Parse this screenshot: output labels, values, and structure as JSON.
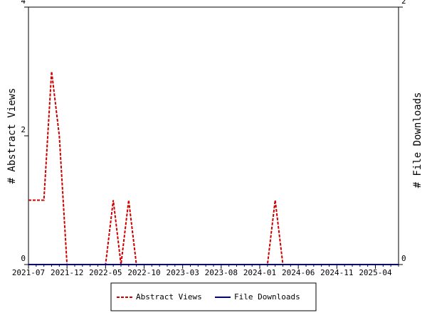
{
  "chart_data": {
    "type": "line",
    "categories": [
      "2021-07",
      null,
      null,
      null,
      null,
      "2021-12",
      null,
      null,
      null,
      null,
      "2022-05",
      null,
      null,
      null,
      null,
      "2022-10",
      null,
      null,
      null,
      null,
      "2023-03",
      null,
      null,
      null,
      null,
      "2023-08",
      null,
      null,
      null,
      null,
      "2024-01",
      null,
      null,
      null,
      null,
      "2024-06",
      null,
      null,
      null,
      null,
      "2024-11",
      null,
      null,
      null,
      null,
      "2025-04",
      null,
      null,
      null
    ],
    "ylabel": "# Abstract Views",
    "y2label": "# File Downloads",
    "ylim": [
      0,
      4
    ],
    "yticks": [
      0,
      2,
      4
    ],
    "y2lim": [
      0,
      2
    ],
    "y2ticks": [
      0,
      2
    ],
    "legend": "bottom",
    "series": [
      {
        "name": "Abstract Views",
        "color": "#cc0000",
        "dashed": true,
        "values": [
          1,
          1,
          1,
          3,
          2,
          0,
          0,
          0,
          0,
          0,
          0,
          1,
          0,
          1,
          0,
          0,
          0,
          0,
          0,
          0,
          0,
          0,
          0,
          0,
          0,
          0,
          0,
          0,
          0,
          0,
          0,
          0,
          1,
          0,
          0,
          0,
          0,
          0,
          0,
          0,
          0,
          0,
          0,
          0,
          0,
          0,
          0,
          0,
          0
        ]
      },
      {
        "name": "File Downloads",
        "color": "#000099",
        "axis": "y2",
        "dashed": false,
        "values": [
          0,
          0,
          0,
          0,
          0,
          0,
          0,
          0,
          0,
          0,
          0,
          0,
          0,
          0,
          0,
          0,
          0,
          0,
          0,
          0,
          0,
          0,
          0,
          0,
          0,
          0,
          0,
          0,
          0,
          0,
          0,
          0,
          0,
          0,
          0,
          0,
          0,
          0,
          0,
          0,
          0,
          0,
          0,
          0,
          0,
          0,
          0,
          0,
          0
        ]
      }
    ]
  }
}
